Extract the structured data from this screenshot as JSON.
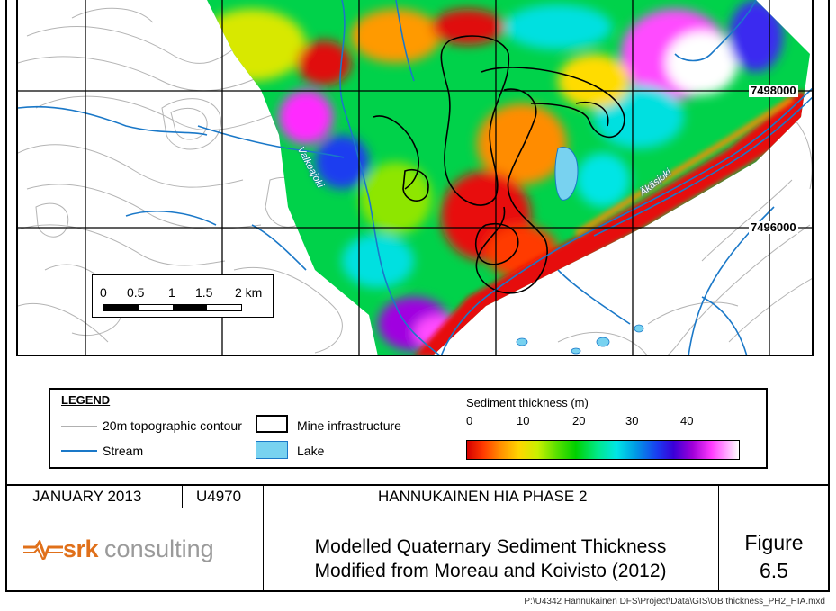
{
  "map": {
    "northing_labels": [
      "7498000",
      "7496000"
    ],
    "rivers": [
      "Valkeajoki",
      "Äkäsjoki"
    ]
  },
  "scale_bar": {
    "labels": [
      "0",
      "0.5",
      "1",
      "1.5",
      "2 km"
    ]
  },
  "legend": {
    "title": "LEGEND",
    "contour_label": "20m topographic contour",
    "stream_label": "Stream",
    "mine_label": "Mine infrastructure",
    "lake_label": "Lake",
    "ramp_title": "Sediment thickness (m)",
    "ramp_ticks": [
      "0",
      "10",
      "20",
      "30",
      "40"
    ],
    "colors": {
      "contour": "#b0b0b0",
      "stream": "#1a78c8",
      "lake": "#78d2f0"
    }
  },
  "title_block": {
    "date": "JANUARY 2013",
    "project_code": "U4970",
    "project_name": "HANNUKAINEN HIA PHASE 2",
    "logo_srk": "srk",
    "logo_consulting": "consulting",
    "title_line1": "Modelled Quaternary Sediment Thickness",
    "title_line2": "Modified from Moreau and Koivisto (2012)",
    "figure_word": "Figure",
    "figure_number": "6.5",
    "file_path": "P:\\U4342 Hannukainen DFS\\Project\\Data\\GIS\\OB thickness_PH2_HIA.mxd"
  }
}
